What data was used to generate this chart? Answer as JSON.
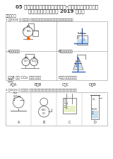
{
  "title_line1": "05 卤素及其化合物（经典常考题）-广东省高三化学上学期",
  "title_line2": "期末专题复习（人教版 2019 新版）",
  "section1": "一、选择题",
  "q1_text": "1.（2024 上·广东深圳·高三统考期末）下列仪器或操作的叙述中正确的图是",
  "q1_label_a": "A．收集氯气",
  "q1_label_b": "B．制备氯化氢",
  "q1_label_c": "C．B 中的 CCl₄ 溶液吸收多余",
  "q1_label_c2": "氯化氢",
  "q1_label_d": "D．可实现尾气吸收",
  "q1_answer_line": "A．A              B．B              C．C              D．B",
  "q2_text": "2.（2023 上·广东茂名·高三统考茂名市高中学业水平期末）下列图示中标注正确的图",
  "background_color": "#ffffff",
  "text_color": "#333333",
  "grid_color": "#aaaaaa",
  "apparatus_color": "#555555",
  "stand_color": "#3366bb",
  "liquid_color": "#c8e0f0",
  "font_size_title": 5.0,
  "font_size_body": 3.8,
  "font_size_label": 3.5,
  "font_size_small": 2.8,
  "font_size_tiny": 2.3
}
